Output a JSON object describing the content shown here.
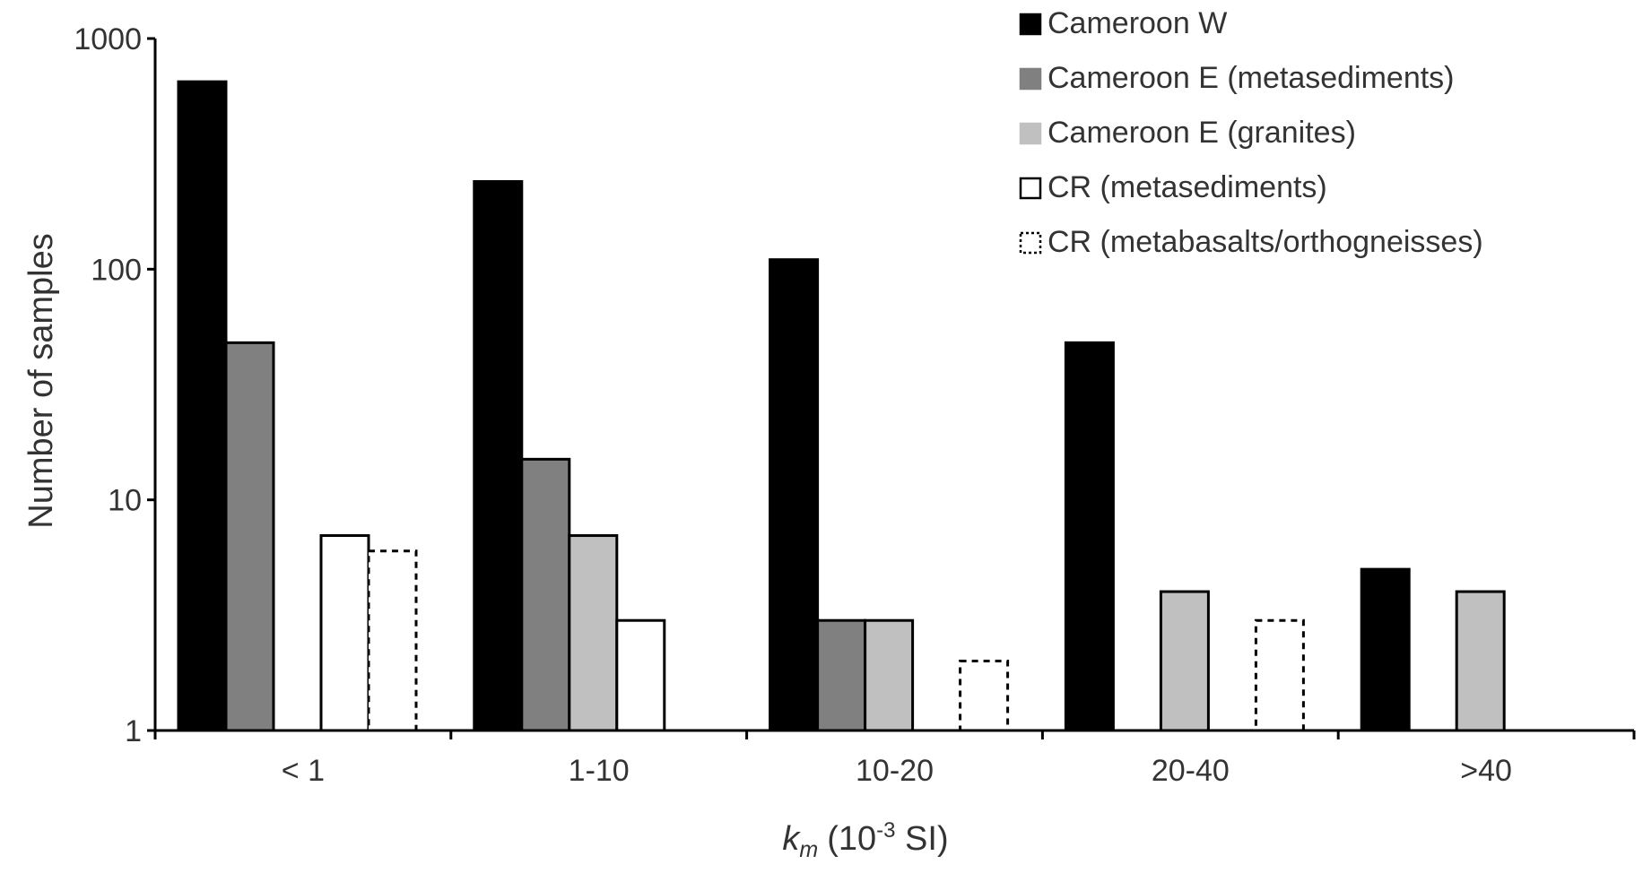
{
  "chart_data": {
    "type": "bar",
    "y_scale": "log",
    "ylim": [
      1,
      1000
    ],
    "y_ticks": [
      "1",
      "10",
      "100",
      "1000"
    ],
    "y_tick_values": [
      1,
      10,
      100,
      1000
    ],
    "categories": [
      "< 1",
      "1-10",
      "10-20",
      "20-40",
      ">40"
    ],
    "ylabel": "Number of samples",
    "xlabel": {
      "symbol": "k",
      "subscript": "m",
      "unit_prefix": "(10",
      "exponent": "-3",
      "unit_suffix": " SI)"
    },
    "legend_position": "top-right",
    "grid": false,
    "series": [
      {
        "name": "Cameroon W",
        "style": "solid",
        "fill": "#000000",
        "stroke": "#000000",
        "values": [
          650,
          240,
          110,
          48,
          5
        ]
      },
      {
        "name": "Cameroon E (metasediments)",
        "style": "solid",
        "fill": "#808080",
        "stroke": "#000000",
        "values": [
          48,
          15,
          3,
          null,
          null
        ]
      },
      {
        "name": "Cameroon E (granites)",
        "style": "solid",
        "fill": "#c0c0c0",
        "stroke": "#000000",
        "values": [
          null,
          7,
          3,
          4,
          4
        ]
      },
      {
        "name": "CR (metasediments)",
        "style": "solid",
        "fill": "#ffffff",
        "stroke": "#000000",
        "values": [
          7,
          3,
          null,
          null,
          null
        ]
      },
      {
        "name": "CR (metabasalts/orthogneisses)",
        "style": "dashed",
        "fill": "#ffffff",
        "stroke": "#000000",
        "values": [
          6,
          null,
          2,
          3,
          null
        ]
      }
    ]
  }
}
